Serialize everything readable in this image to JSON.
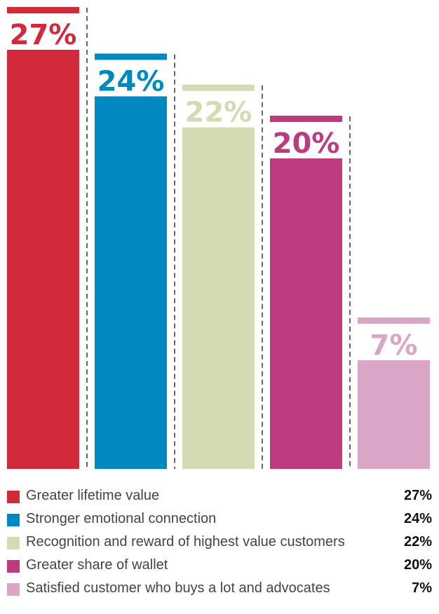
{
  "chart_data": {
    "type": "bar",
    "categories": [
      "Greater lifetime value",
      "Stronger emotional connection",
      "Recognition and reward of highest value customers",
      "Greater share of wallet",
      "Satisfied customer who buys a lot and advocates"
    ],
    "values": [
      27,
      24,
      22,
      20,
      7
    ],
    "value_labels": [
      "27%",
      "24%",
      "22%",
      "20%",
      "7%"
    ],
    "colors": [
      "#d12a3a",
      "#0089c0",
      "#d2dbb1",
      "#bd3a7e",
      "#dba6c6"
    ],
    "ylim": [
      0,
      27
    ],
    "grid": false,
    "legend_position": "bottom"
  },
  "legend": [
    {
      "label": "Greater lifetime value",
      "value": "27%",
      "color": "#d12a3a"
    },
    {
      "label": "Stronger emotional connection",
      "value": "24%",
      "color": "#0089c0"
    },
    {
      "label": "Recognition and reward of highest value customers",
      "value": "22%",
      "color": "#d2dbb1"
    },
    {
      "label": "Greater share of wallet",
      "value": "20%",
      "color": "#bd3a7e"
    },
    {
      "label": "Satisfied customer who buys a lot and advocates",
      "value": "7%",
      "color": "#dba6c6"
    }
  ]
}
